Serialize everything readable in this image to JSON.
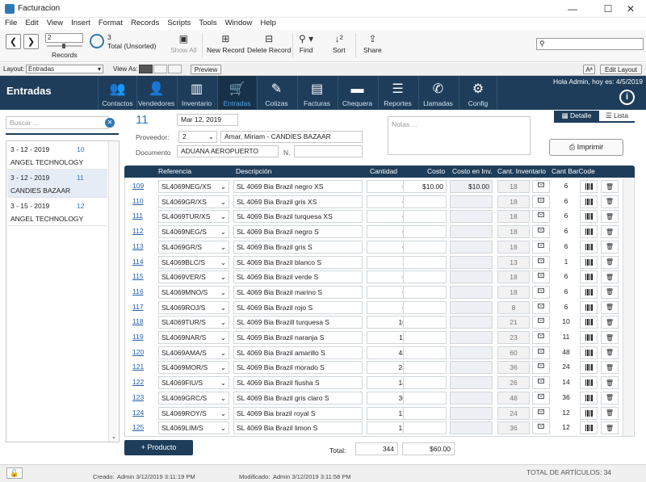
{
  "window": {
    "title": "Facturacion",
    "minimize": "—",
    "maximize": "☐",
    "close": "✕"
  },
  "menu": [
    "File",
    "Edit",
    "View",
    "Insert",
    "Format",
    "Records",
    "Scripts",
    "Tools",
    "Window",
    "Help"
  ],
  "toolbar": {
    "record_number": "2",
    "records_label": "Records",
    "found_count": "3",
    "total_label": "Total (Unsorted)",
    "show_all": "Show All",
    "new_record": "New Record",
    "delete_record": "Delete Record",
    "find": "Find",
    "sort": "Sort",
    "share": "Share",
    "search_placeholder": ""
  },
  "layoutbar": {
    "layout_label": "Layout:",
    "layout_value": "Entradas",
    "view_as": "View As:",
    "preview": "Preview",
    "aa": "Aª",
    "edit_layout": "Edit Layout"
  },
  "appbar": {
    "title": "Entradas",
    "greeting": "Hola Admin, hoy es: 4/5/2019",
    "nav": [
      "Contactos",
      "Vendedores",
      "Inventario",
      "Entradas",
      "Cotizas",
      "Facturas",
      "Chequera",
      "Reportes",
      "Llamadas",
      "Config"
    ]
  },
  "sidebar": {
    "search_placeholder": "Buscar ...",
    "items": [
      {
        "date": "3 - 12 - 2019",
        "num": "10",
        "name": "ANGEL TECHNOLOGY"
      },
      {
        "date": "3 - 12 - 2019",
        "num": "11",
        "name": "CANDIES BAZAAR"
      },
      {
        "date": "3 - 15 - 2019",
        "num": "12",
        "name": "ANGEL TECHNOLOGY"
      }
    ]
  },
  "record": {
    "number": "11",
    "date": "Mar 12, 2019",
    "proveedor_label": "Proveedor:",
    "proveedor_id": "2",
    "proveedor_name": "Amar, Miriam - CANDIES BAZAAR",
    "documento_label": "Documento",
    "documento": "ADUANA AEROPUERTO",
    "n_label": "N.",
    "n_value": "",
    "notas_placeholder": "Notas ...",
    "tab_detalle": "Detalle",
    "tab_lista": "Lista",
    "imprimir": "Imprimir"
  },
  "grid": {
    "headers": [
      "Referencia",
      "Descripción",
      "Cantidad",
      "Costo",
      "Costo en Inv.",
      "Cant. Inventario",
      "Cant BarCode"
    ],
    "rows": [
      {
        "id": "109",
        "ref": "SL4069NEG/XS",
        "desc": "SL 4069 Bia Brazil negro XS",
        "qty": "6",
        "cost": "$10.00",
        "costinv": "$10.00",
        "inv": "18",
        "bc": "6"
      },
      {
        "id": "110",
        "ref": "SL4069GR/XS",
        "desc": "SL 4069 Bia Brazil gris XS",
        "qty": "6",
        "cost": "",
        "costinv": "",
        "inv": "18",
        "bc": "6"
      },
      {
        "id": "111",
        "ref": "SL4069TUR/XS",
        "desc": "SL 4069 Bia Brazil turquesa XS",
        "qty": "6",
        "cost": "",
        "costinv": "",
        "inv": "18",
        "bc": "6"
      },
      {
        "id": "112",
        "ref": "SL4069NEG/S",
        "desc": "SL 4069 Bia Brazil negro S",
        "qty": "6",
        "cost": "",
        "costinv": "",
        "inv": "18",
        "bc": "6"
      },
      {
        "id": "113",
        "ref": "SL4069GR/S",
        "desc": "SL 4069 Bia Brazil gris S",
        "qty": "6",
        "cost": "",
        "costinv": "",
        "inv": "18",
        "bc": "6"
      },
      {
        "id": "114",
        "ref": "SL4069BLC/S",
        "desc": "SL 4069 Bia Brazil blanco S",
        "qty": "1",
        "cost": "",
        "costinv": "",
        "inv": "13",
        "bc": "1"
      },
      {
        "id": "115",
        "ref": "SL4069VER/S",
        "desc": "SL 4069 Bia Brazil verde S",
        "qty": "6",
        "cost": "",
        "costinv": "",
        "inv": "18",
        "bc": "6"
      },
      {
        "id": "116",
        "ref": "SL4069MNO/S",
        "desc": "SL 4069 Bia Brazil marino S",
        "qty": "6",
        "cost": "",
        "costinv": "",
        "inv": "18",
        "bc": "6"
      },
      {
        "id": "117",
        "ref": "SL4069ROJ/S",
        "desc": "SL 4069 Bia Brazil rojo S",
        "qty": "6",
        "cost": "",
        "costinv": "",
        "inv": "8",
        "bc": "6"
      },
      {
        "id": "118",
        "ref": "SL4069TUR/S",
        "desc": "SL 4069 Bia Brazill turquesa S",
        "qty": "10",
        "cost": "",
        "costinv": "",
        "inv": "21",
        "bc": "10"
      },
      {
        "id": "119",
        "ref": "SL4069NAR/S",
        "desc": "SL 4069 Bia Brazil naranja S",
        "qty": "11",
        "cost": "",
        "costinv": "",
        "inv": "23",
        "bc": "11"
      },
      {
        "id": "120",
        "ref": "SL4069AMA/S",
        "desc": "SL 4069 Bia Brazil amarillo S",
        "qty": "48",
        "cost": "",
        "costinv": "",
        "inv": "60",
        "bc": "48"
      },
      {
        "id": "121",
        "ref": "SL4069MOR/S",
        "desc": "SL 4069 Bia Brazil morado S",
        "qty": "24",
        "cost": "",
        "costinv": "",
        "inv": "36",
        "bc": "24"
      },
      {
        "id": "122",
        "ref": "SL4069FIU/S",
        "desc": "SL 4069 Bia Brazil fiusha S",
        "qty": "14",
        "cost": "",
        "costinv": "",
        "inv": "26",
        "bc": "14"
      },
      {
        "id": "123",
        "ref": "SL4069GRC/S",
        "desc": "SL 4069 Bia Brazil gris claro S",
        "qty": "36",
        "cost": "",
        "costinv": "",
        "inv": "48",
        "bc": "36"
      },
      {
        "id": "124",
        "ref": "SL4069ROY/S",
        "desc": "SL 4069 Bia brazil royal S",
        "qty": "12",
        "cost": "",
        "costinv": "",
        "inv": "24",
        "bc": "12"
      },
      {
        "id": "125",
        "ref": "SL4069LIM/S",
        "desc": "SL 4069 Bia Brazil limon S",
        "qty": "12",
        "cost": "",
        "costinv": "",
        "inv": "36",
        "bc": "12"
      }
    ],
    "add_product": "+  Producto",
    "total_label": "Total:",
    "total_qty": "344",
    "total_cost": "$60.00"
  },
  "footer": {
    "created_label": "Creado:",
    "created": "Admin  3/12/2019 3:11:19 PM",
    "modified_label": "Modificado:",
    "modified": "Admin  3/12/2019 3:11:58 PM",
    "total_articulos": "TOTAL DE ARTÍCULOS: 34"
  },
  "colors": {
    "navy": "#1e3d5a",
    "accent": "#2f78b5",
    "link": "#2560a8"
  }
}
